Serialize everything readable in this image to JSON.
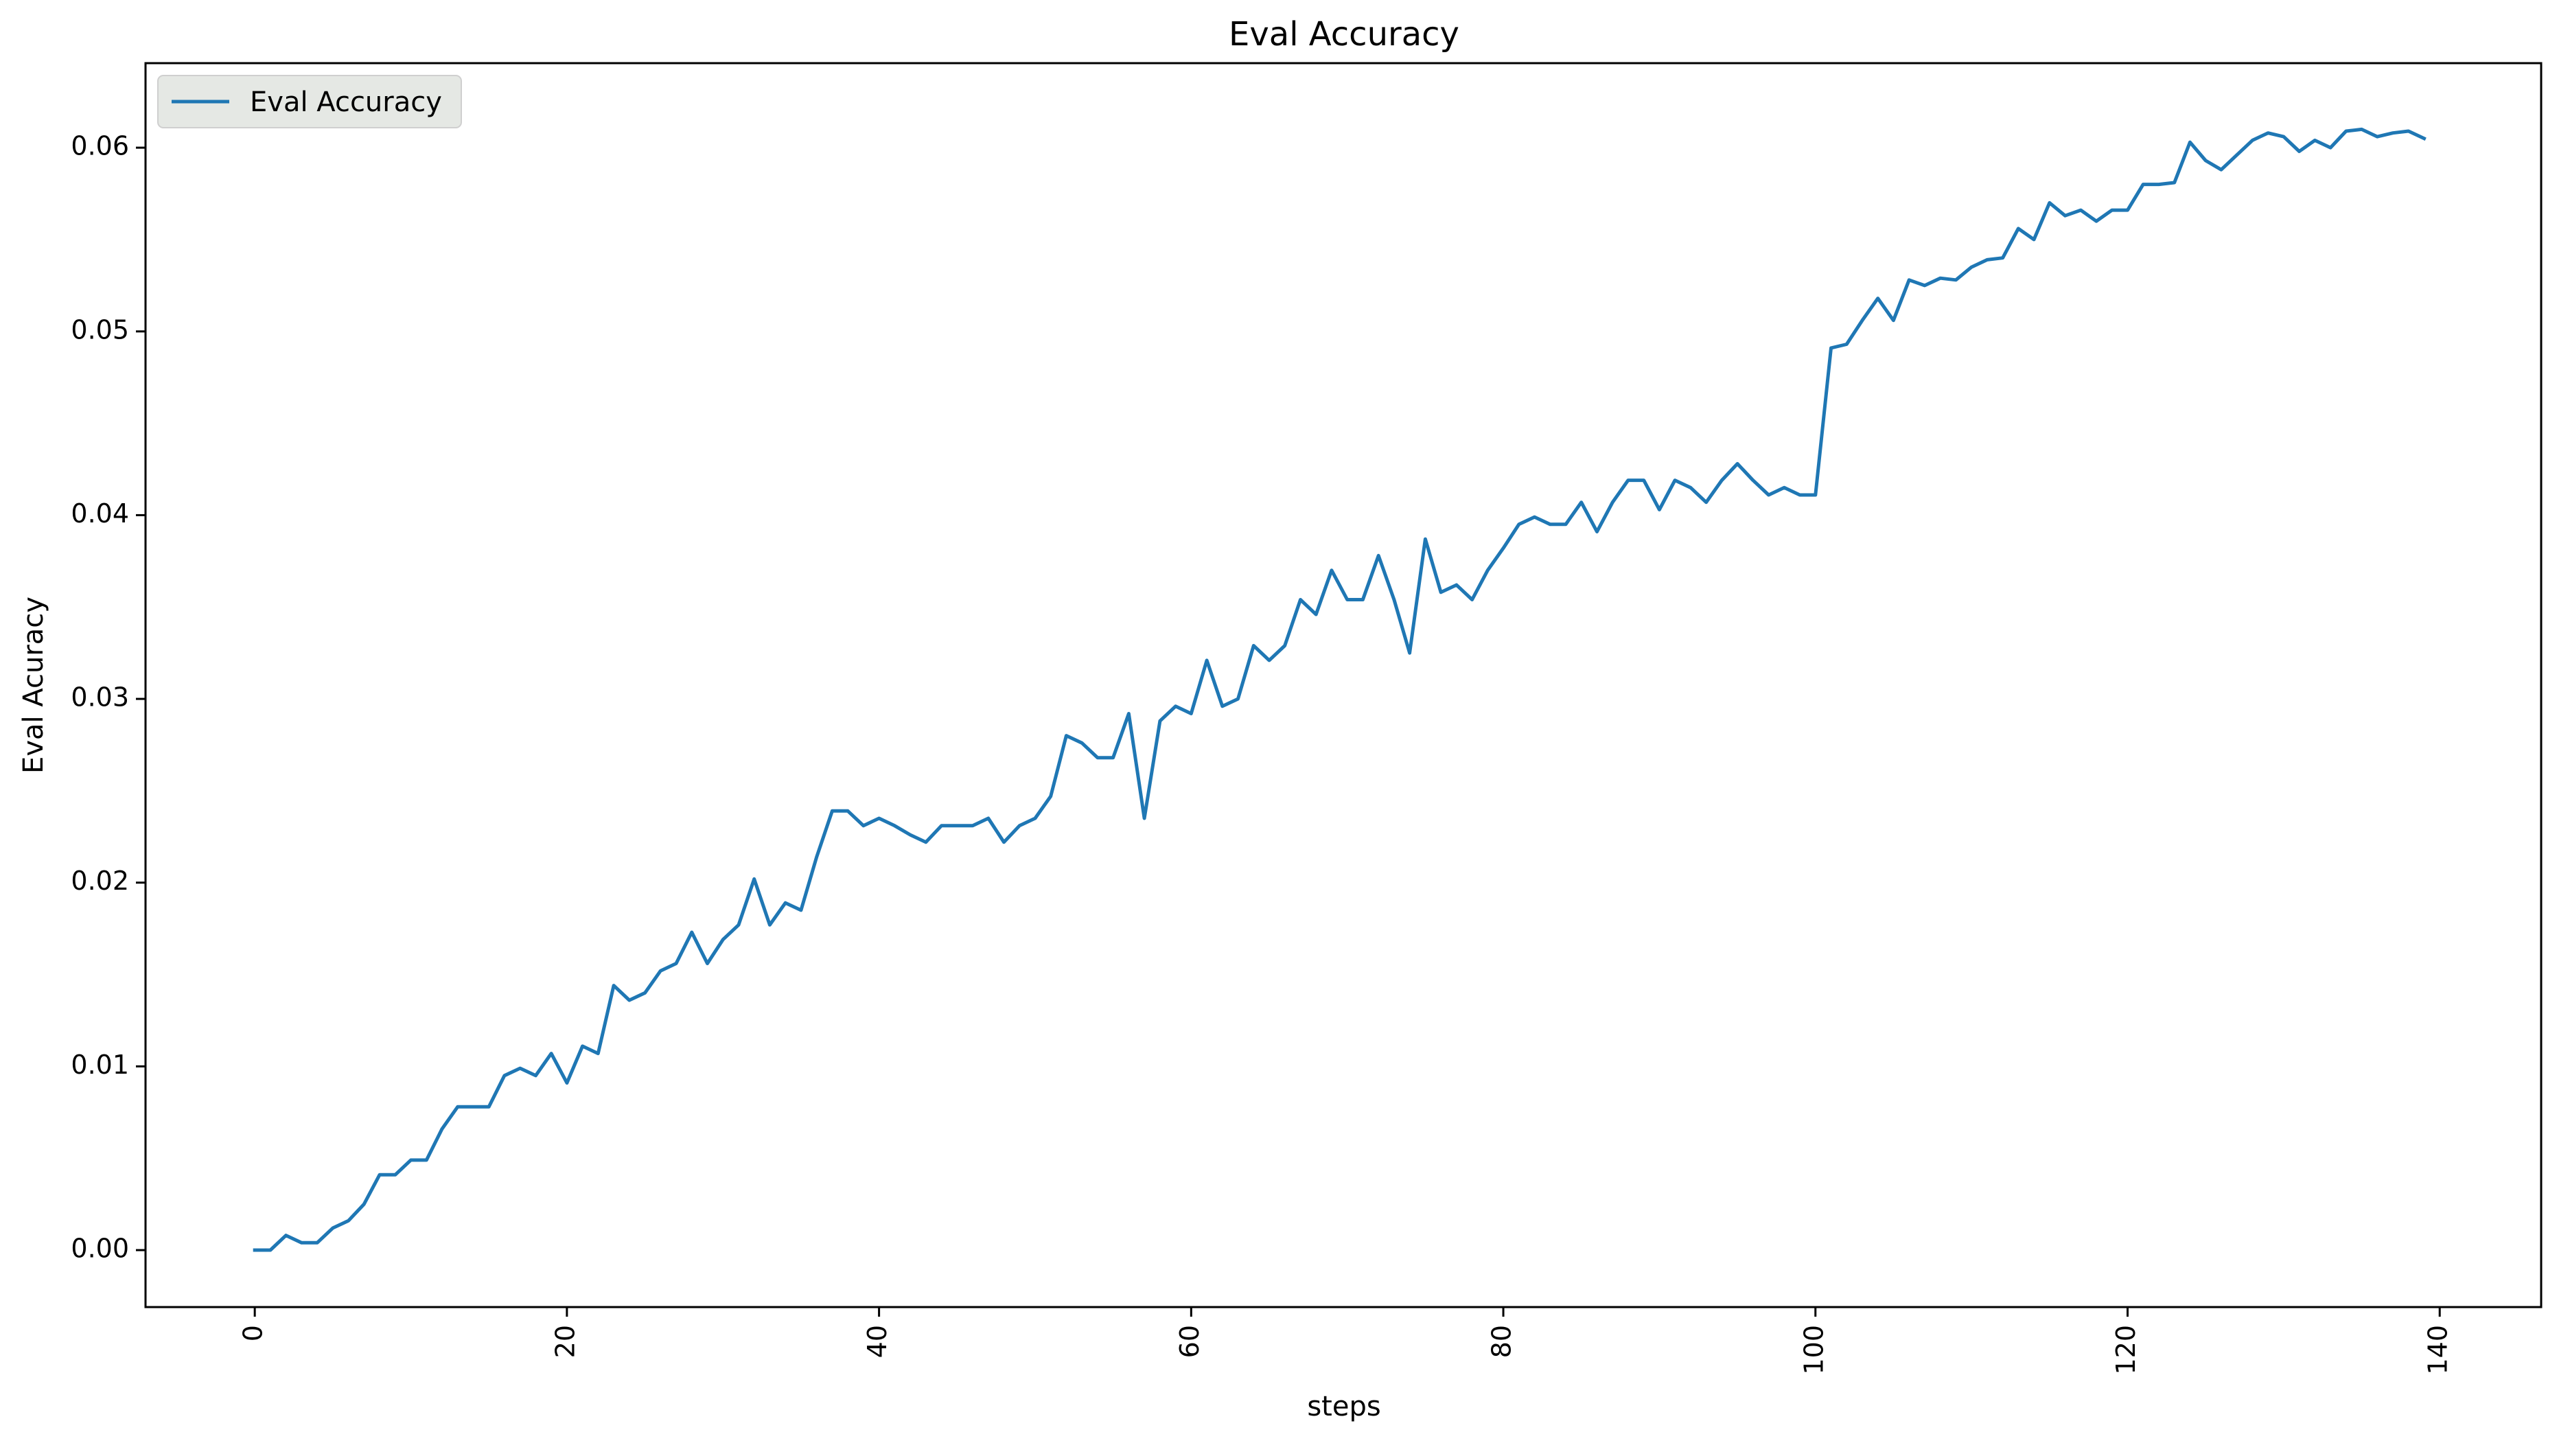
{
  "chart_data": {
    "type": "line",
    "title": "Eval Accuracy",
    "xlabel": "steps",
    "ylabel": "Eval Acuracy",
    "xlim": [
      -7,
      146.5
    ],
    "ylim": [
      -0.0031,
      0.0646
    ],
    "xticks": [
      0,
      20,
      40,
      60,
      80,
      100,
      120,
      140
    ],
    "yticks": [
      0.0,
      0.01,
      0.02,
      0.03,
      0.04,
      0.05,
      0.06
    ],
    "ytick_labels": [
      "0.00",
      "0.01",
      "0.02",
      "0.03",
      "0.04",
      "0.05",
      "0.06"
    ],
    "xtick_rotation": 90,
    "grid": false,
    "legend": {
      "position": "upper-left"
    },
    "series": [
      {
        "name": "Eval Accuracy",
        "color": "#1f77b4",
        "x_start": 0,
        "x_step": 1,
        "values": [
          0.0,
          0.0,
          0.0008,
          0.0004,
          0.0004,
          0.0012,
          0.0016,
          0.0025,
          0.0041,
          0.0041,
          0.0049,
          0.0049,
          0.0066,
          0.0078,
          0.0078,
          0.0078,
          0.0095,
          0.0099,
          0.0095,
          0.0107,
          0.0091,
          0.0111,
          0.0107,
          0.0144,
          0.0136,
          0.014,
          0.0152,
          0.0156,
          0.0173,
          0.0156,
          0.0169,
          0.0177,
          0.0202,
          0.0177,
          0.0189,
          0.0185,
          0.0214,
          0.0239,
          0.0239,
          0.0231,
          0.0235,
          0.0231,
          0.0226,
          0.0222,
          0.0231,
          0.0231,
          0.0231,
          0.0235,
          0.0222,
          0.0231,
          0.0235,
          0.0247,
          0.028,
          0.0276,
          0.0268,
          0.0268,
          0.0292,
          0.0235,
          0.0288,
          0.0296,
          0.0292,
          0.0321,
          0.0296,
          0.03,
          0.0329,
          0.0321,
          0.0329,
          0.0354,
          0.0346,
          0.037,
          0.0354,
          0.0354,
          0.0378,
          0.0354,
          0.0325,
          0.0387,
          0.0358,
          0.0362,
          0.0354,
          0.037,
          0.0382,
          0.0395,
          0.0399,
          0.0395,
          0.0395,
          0.0407,
          0.0391,
          0.0407,
          0.0419,
          0.0419,
          0.0403,
          0.0419,
          0.0415,
          0.0407,
          0.0419,
          0.0428,
          0.0419,
          0.0411,
          0.0415,
          0.0411,
          0.0411,
          0.0491,
          0.0493,
          0.0506,
          0.0518,
          0.0506,
          0.0528,
          0.0525,
          0.0529,
          0.0528,
          0.0535,
          0.0539,
          0.054,
          0.0556,
          0.055,
          0.057,
          0.0563,
          0.0566,
          0.056,
          0.0566,
          0.0566,
          0.058,
          0.058,
          0.0581,
          0.0603,
          0.0593,
          0.0588,
          0.0596,
          0.0604,
          0.0608,
          0.0606,
          0.0598,
          0.0604,
          0.06,
          0.0609,
          0.061,
          0.0606,
          0.0608,
          0.0609,
          0.0605
        ]
      }
    ]
  }
}
